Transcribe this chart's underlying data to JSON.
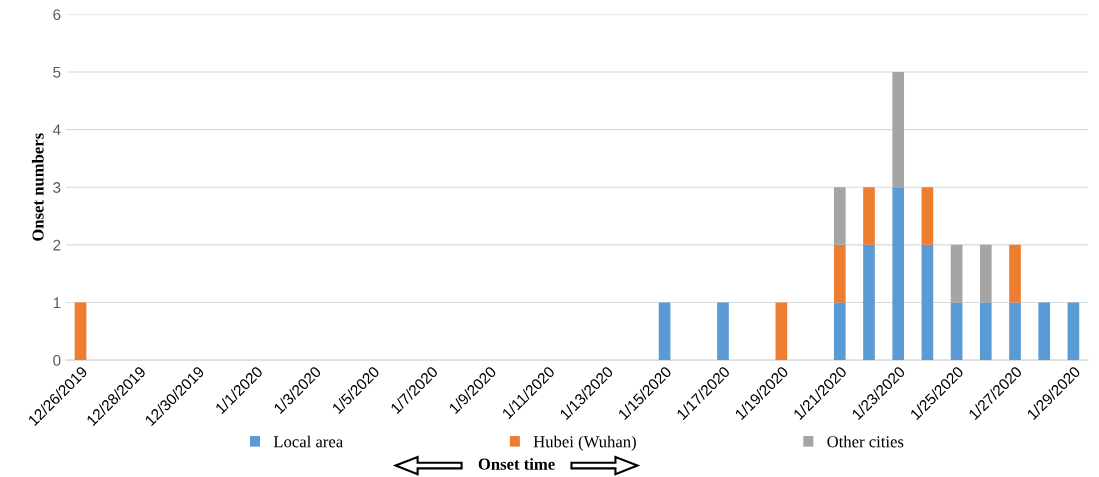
{
  "chart_data": {
    "type": "bar",
    "stacked": true,
    "xlabel": "Onset time",
    "ylabel": "Onset numbers",
    "categories": [
      "12/26/2019",
      null,
      "12/28/2019",
      null,
      "12/30/2019",
      null,
      "1/1/2020",
      null,
      "1/3/2020",
      null,
      "1/5/2020",
      null,
      "1/7/2020",
      null,
      "1/9/2020",
      null,
      "1/11/2020",
      null,
      "1/13/2020",
      null,
      "1/15/2020",
      null,
      "1/17/2020",
      null,
      "1/19/2020",
      null,
      "1/21/2020",
      null,
      "1/23/2020",
      null,
      "1/25/2020",
      null,
      "1/27/2020",
      null,
      "1/29/2020"
    ],
    "series": [
      {
        "name": "Local area",
        "color": "#5b9bd5",
        "values": [
          0,
          0,
          0,
          0,
          0,
          0,
          0,
          0,
          0,
          0,
          0,
          0,
          0,
          0,
          0,
          0,
          0,
          0,
          0,
          0,
          1,
          0,
          1,
          0,
          0,
          0,
          1,
          2,
          3,
          2,
          1,
          1,
          1,
          1,
          1
        ]
      },
      {
        "name": "Hubei (Wuhan)",
        "color": "#ed7d31",
        "values": [
          1,
          0,
          0,
          0,
          0,
          0,
          0,
          0,
          0,
          0,
          0,
          0,
          0,
          0,
          0,
          0,
          0,
          0,
          0,
          0,
          0,
          0,
          0,
          0,
          1,
          0,
          1,
          1,
          0,
          1,
          0,
          0,
          1,
          0,
          0
        ]
      },
      {
        "name": "Other cities",
        "color": "#a5a5a5",
        "values": [
          0,
          0,
          0,
          0,
          0,
          0,
          0,
          0,
          0,
          0,
          0,
          0,
          0,
          0,
          0,
          0,
          0,
          0,
          0,
          0,
          0,
          0,
          0,
          0,
          0,
          0,
          1,
          0,
          2,
          0,
          1,
          1,
          0,
          0,
          0
        ]
      }
    ],
    "ylim": [
      0,
      6
    ],
    "yticks": [
      0,
      1,
      2,
      3,
      4,
      5,
      6
    ],
    "grid": "y",
    "legend": "bottom"
  }
}
